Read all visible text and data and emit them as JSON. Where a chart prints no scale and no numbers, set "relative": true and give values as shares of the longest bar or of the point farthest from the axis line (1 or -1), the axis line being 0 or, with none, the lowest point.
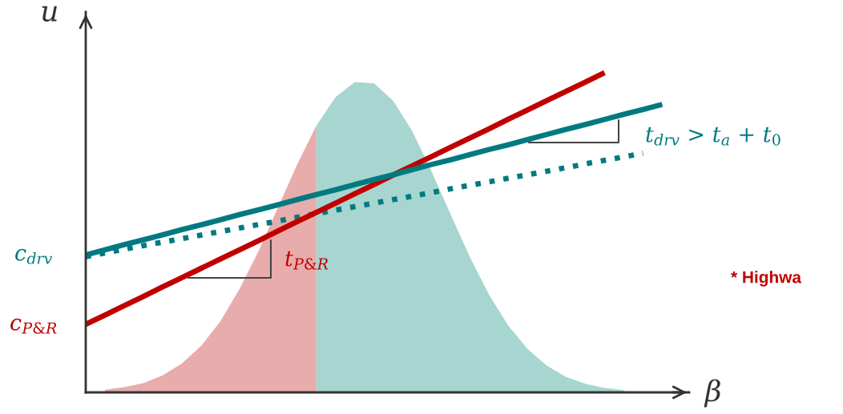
{
  "chart_data": {
    "type": "line",
    "relative": true,
    "xlabel": "β",
    "ylabel": "u",
    "legend": false,
    "categories": [
      null,
      null,
      null,
      null,
      null,
      null,
      null,
      null,
      null,
      null,
      null,
      null,
      null,
      null,
      null,
      null,
      null,
      null,
      null,
      null,
      null,
      null,
      null,
      null,
      null,
      null,
      null,
      null,
      null,
      null,
      null
    ],
    "series": [
      {
        "type": "area",
        "color": "#e6a3a3",
        "values": [
          null,
          0.008,
          0.016,
          0.029,
          0.053,
          0.09,
          0.145,
          0.222,
          0.323,
          0.443,
          0.578,
          0.713,
          0.834,
          null,
          null,
          null,
          null,
          null,
          null,
          null,
          null,
          null,
          null,
          null,
          null,
          null,
          null,
          null,
          null,
          null,
          null
        ]
      },
      {
        "type": "area",
        "color": "#9dd0cb",
        "values": [
          null,
          null,
          null,
          null,
          null,
          null,
          null,
          null,
          null,
          null,
          null,
          null,
          0.834,
          0.924,
          0.971,
          0.967,
          0.912,
          0.816,
          0.691,
          0.555,
          0.422,
          0.304,
          0.208,
          0.135,
          0.083,
          0.048,
          0.027,
          0.014,
          0.007,
          null,
          null
        ]
      },
      {
        "color": "#007a80",
        "line_style": "dotted",
        "values": [
          0.425,
          0.436,
          0.448,
          0.459,
          0.47,
          0.481,
          0.492,
          0.503,
          0.514,
          0.525,
          0.536,
          0.548,
          0.559,
          0.57,
          0.581,
          0.592,
          0.603,
          0.614,
          0.625,
          0.637,
          0.648,
          0.659,
          0.67,
          0.681,
          0.692,
          0.703,
          0.715,
          0.726,
          0.737,
          0.748,
          null
        ]
      },
      {
        "color": "#c00000",
        "line_style": "solid",
        "values": [
          0.213,
          0.242,
          0.271,
          0.3,
          0.33,
          0.359,
          0.388,
          0.417,
          0.446,
          0.475,
          0.505,
          0.534,
          0.563,
          0.592,
          0.621,
          0.65,
          0.68,
          0.709,
          0.738,
          0.767,
          0.796,
          0.825,
          0.855,
          0.884,
          0.913,
          0.942,
          0.971,
          1.0,
          null,
          null,
          null
        ]
      },
      {
        "color": "#007a80",
        "line_style": "solid",
        "values": [
          0.43,
          0.446,
          0.462,
          0.477,
          0.493,
          0.509,
          0.524,
          0.54,
          0.556,
          0.571,
          0.587,
          0.603,
          0.619,
          0.634,
          0.65,
          0.666,
          0.681,
          0.697,
          0.713,
          0.728,
          0.744,
          0.76,
          0.775,
          0.791,
          0.807,
          0.823,
          0.838,
          0.854,
          0.87,
          0.885,
          0.901
        ]
      }
    ],
    "annotations": [
      "c$_{drv}$",
      "c$_{P&R}$",
      "t$_{P&R}$",
      "t$_{drv}$ > t$_{a}$ + t$_{0}$",
      "* Highwa"
    ]
  }
}
